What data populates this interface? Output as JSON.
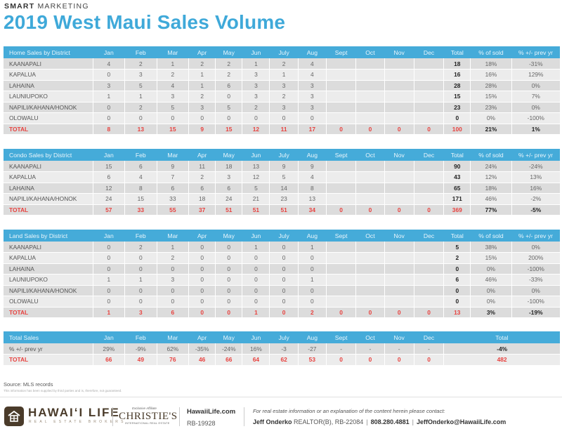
{
  "header": {
    "brand_bold": "SMART",
    "brand_light": "MARKETING",
    "title": "2019 West Maui Sales Volume"
  },
  "months": [
    "Jan",
    "Feb",
    "Mar",
    "Apr",
    "May",
    "Jun",
    "July",
    "Aug",
    "Sept",
    "Oct",
    "Nov",
    "Dec"
  ],
  "col_total": "Total",
  "col_pct_sold": "% of sold",
  "col_pct_prev": "% +/- prev yr",
  "tables": [
    {
      "title": "Home Sales by District",
      "rows": [
        {
          "district": "KAANAPALI",
          "values": [
            "4",
            "2",
            "1",
            "2",
            "2",
            "1",
            "2",
            "4",
            "",
            "",
            "",
            ""
          ],
          "total": "18",
          "pct_sold": "18%",
          "pct_prev": "-31%"
        },
        {
          "district": "KAPALUA",
          "values": [
            "0",
            "3",
            "2",
            "1",
            "2",
            "3",
            "1",
            "4",
            "",
            "",
            "",
            ""
          ],
          "total": "16",
          "pct_sold": "16%",
          "pct_prev": "129%"
        },
        {
          "district": "LAHAINA",
          "values": [
            "3",
            "5",
            "4",
            "1",
            "6",
            "3",
            "3",
            "3",
            "",
            "",
            "",
            ""
          ],
          "total": "28",
          "pct_sold": "28%",
          "pct_prev": "0%"
        },
        {
          "district": "LAUNIUPOKO",
          "values": [
            "1",
            "1",
            "3",
            "2",
            "0",
            "3",
            "2",
            "3",
            "",
            "",
            "",
            ""
          ],
          "total": "15",
          "pct_sold": "15%",
          "pct_prev": "7%"
        },
        {
          "district": "NAPILI/KAHANA/HONOK",
          "values": [
            "0",
            "2",
            "5",
            "3",
            "5",
            "2",
            "3",
            "3",
            "",
            "",
            "",
            ""
          ],
          "total": "23",
          "pct_sold": "23%",
          "pct_prev": "0%"
        },
        {
          "district": "OLOWALU",
          "values": [
            "0",
            "0",
            "0",
            "0",
            "0",
            "0",
            "0",
            "0",
            "",
            "",
            "",
            ""
          ],
          "total": "0",
          "pct_sold": "0%",
          "pct_prev": "-100%"
        }
      ],
      "total_row": {
        "label": "TOTAL",
        "values": [
          "8",
          "13",
          "15",
          "9",
          "15",
          "12",
          "11",
          "17",
          "0",
          "0",
          "0",
          "0"
        ],
        "total": "100",
        "pct_sold": "21%",
        "pct_prev": "1%"
      }
    },
    {
      "title": "Condo Sales by District",
      "rows": [
        {
          "district": "KAANAPALI",
          "values": [
            "15",
            "6",
            "9",
            "11",
            "18",
            "13",
            "9",
            "9",
            "",
            "",
            "",
            ""
          ],
          "total": "90",
          "pct_sold": "24%",
          "pct_prev": "-24%"
        },
        {
          "district": "KAPALUA",
          "values": [
            "6",
            "4",
            "7",
            "2",
            "3",
            "12",
            "5",
            "4",
            "",
            "",
            "",
            ""
          ],
          "total": "43",
          "pct_sold": "12%",
          "pct_prev": "13%"
        },
        {
          "district": "LAHAINA",
          "values": [
            "12",
            "8",
            "6",
            "6",
            "6",
            "5",
            "14",
            "8",
            "",
            "",
            "",
            ""
          ],
          "total": "65",
          "pct_sold": "18%",
          "pct_prev": "16%"
        },
        {
          "district": "NAPILI/KAHANA/HONOK",
          "values": [
            "24",
            "15",
            "33",
            "18",
            "24",
            "21",
            "23",
            "13",
            "",
            "",
            "",
            ""
          ],
          "total": "171",
          "pct_sold": "46%",
          "pct_prev": "-2%"
        }
      ],
      "total_row": {
        "label": "TOTAL",
        "values": [
          "57",
          "33",
          "55",
          "37",
          "51",
          "51",
          "51",
          "34",
          "0",
          "0",
          "0",
          "0"
        ],
        "total": "369",
        "pct_sold": "77%",
        "pct_prev": "-5%"
      }
    },
    {
      "title": "Land Sales by District",
      "rows": [
        {
          "district": "KAANAPALI",
          "values": [
            "0",
            "2",
            "1",
            "0",
            "0",
            "1",
            "0",
            "1",
            "",
            "",
            "",
            ""
          ],
          "total": "5",
          "pct_sold": "38%",
          "pct_prev": "0%"
        },
        {
          "district": "KAPALUA",
          "values": [
            "0",
            "0",
            "2",
            "0",
            "0",
            "0",
            "0",
            "0",
            "",
            "",
            "",
            ""
          ],
          "total": "2",
          "pct_sold": "15%",
          "pct_prev": "200%"
        },
        {
          "district": "LAHAINA",
          "values": [
            "0",
            "0",
            "0",
            "0",
            "0",
            "0",
            "0",
            "0",
            "",
            "",
            "",
            ""
          ],
          "total": "0",
          "pct_sold": "0%",
          "pct_prev": "-100%"
        },
        {
          "district": "LAUNIUPOKO",
          "values": [
            "1",
            "1",
            "3",
            "0",
            "0",
            "0",
            "0",
            "1",
            "",
            "",
            "",
            ""
          ],
          "total": "6",
          "pct_sold": "46%",
          "pct_prev": "-33%"
        },
        {
          "district": "NAPILI/KAHANA/HONOK",
          "values": [
            "0",
            "0",
            "0",
            "0",
            "0",
            "0",
            "0",
            "0",
            "",
            "",
            "",
            ""
          ],
          "total": "0",
          "pct_sold": "0%",
          "pct_prev": "0%"
        },
        {
          "district": "OLOWALU",
          "values": [
            "0",
            "0",
            "0",
            "0",
            "0",
            "0",
            "0",
            "0",
            "",
            "",
            "",
            ""
          ],
          "total": "0",
          "pct_sold": "0%",
          "pct_prev": "-100%"
        }
      ],
      "total_row": {
        "label": "TOTAL",
        "values": [
          "1",
          "3",
          "6",
          "0",
          "0",
          "1",
          "0",
          "2",
          "0",
          "0",
          "0",
          "0"
        ],
        "total": "13",
        "pct_sold": "3%",
        "pct_prev": "-19%"
      }
    }
  ],
  "total_sales": {
    "title": "Total Sales",
    "prev_row": {
      "label": "% +/- prev yr",
      "values": [
        "29%",
        "-9%",
        "62%",
        "-35%",
        "-24%",
        "16%",
        "-3",
        "-27",
        "-",
        "-",
        "-",
        "-"
      ],
      "total": "-4%"
    },
    "total_row": {
      "label": "TOTAL",
      "values": [
        "66",
        "49",
        "76",
        "46",
        "66",
        "64",
        "62",
        "53",
        "0",
        "0",
        "0",
        "0"
      ],
      "total": "482"
    }
  },
  "footer": {
    "source": "Source: MLS records",
    "disclaimer": "This information has been supplied by third parties and is, therefore, not guaranteed.",
    "logo_name": "HAWAIʻI LIFE",
    "logo_sub": "REAL ESTATE BROKERS",
    "christies_affiliate": "Exclusive Affiliate",
    "christies_name": "CHRISTIE'S",
    "christies_sub": "INTERNATIONAL REAL ESTATE",
    "website": "HawaiiLife.com",
    "license": "RB-19928",
    "contact_intro": "For real estate information or an explanation of the content herein please contact:",
    "agent_name": "Jeff Onderko",
    "agent_title": "REALTOR(B), RB-22084",
    "phone": "808.280.4881",
    "email": "JeffOnderko@HawaiiLife.com"
  },
  "colors": {
    "accent": "#45abd9",
    "title": "#3fa9d9",
    "total_red": "#e8413e",
    "brand_brown": "#4a3b2a"
  }
}
